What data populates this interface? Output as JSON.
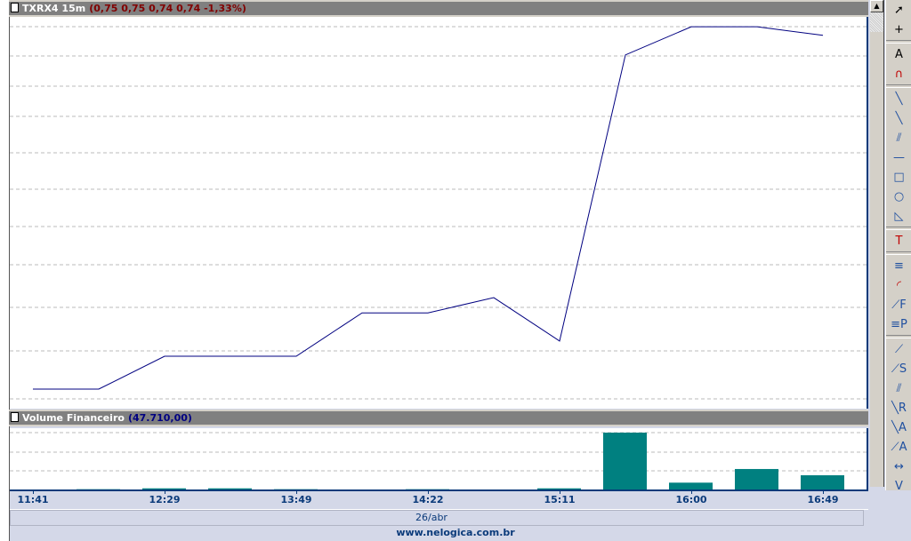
{
  "price_panel": {
    "symbol": "TXRX4 15m",
    "values": "(0,75  0,75  0,74  0,74  -1,33%)"
  },
  "volume_panel": {
    "title": "Volume Financeiro",
    "value": "(47.710,00)"
  },
  "time_axis": {
    "labels": [
      "11:41",
      "12:29",
      "13:49",
      "14:22",
      "15:11",
      "16:00",
      "16:49"
    ]
  },
  "date_label": "26/abr",
  "footer": "www.nelogica.com.br",
  "colors": {
    "line": "#000080",
    "volume": "#008080",
    "header": "#808080",
    "price_values": "#800000"
  },
  "chart_data": [
    {
      "type": "line",
      "series": [
        {
          "values": [
            2.5,
            2.5,
            10.9,
            10.9,
            10.9,
            22,
            22,
            25.9,
            14.8,
            88,
            95.2,
            95.2,
            93
          ]
        }
      ],
      "note_scale": "relative",
      "grid": true
    },
    {
      "type": "bar",
      "series": [
        {
          "values": [
            0,
            0.5,
            2,
            2,
            0.5,
            0,
            0.5,
            0,
            2,
            100,
            12,
            36,
            25
          ]
        }
      ],
      "grid": true
    }
  ],
  "toolbar": {
    "items": [
      "pointer-icon",
      "crosshair-icon",
      "text-A-icon",
      "magnet-icon",
      "line-icon",
      "ray-icon",
      "parallel-lines-icon",
      "horizontal-line-icon",
      "rectangle-icon",
      "ellipse-icon",
      "triangle-icon",
      "text-T-icon",
      "horizontal-lines-icon",
      "fibonacci-arc-icon",
      "fibonacci-fan-icon",
      "fibonacci-p-icon",
      "speed-lines-icon",
      "speed-s-icon",
      "channel-icon",
      "regression-icon",
      "andrews-icon",
      "angle-a-icon",
      "measure-icon",
      "cycle-icon"
    ]
  }
}
